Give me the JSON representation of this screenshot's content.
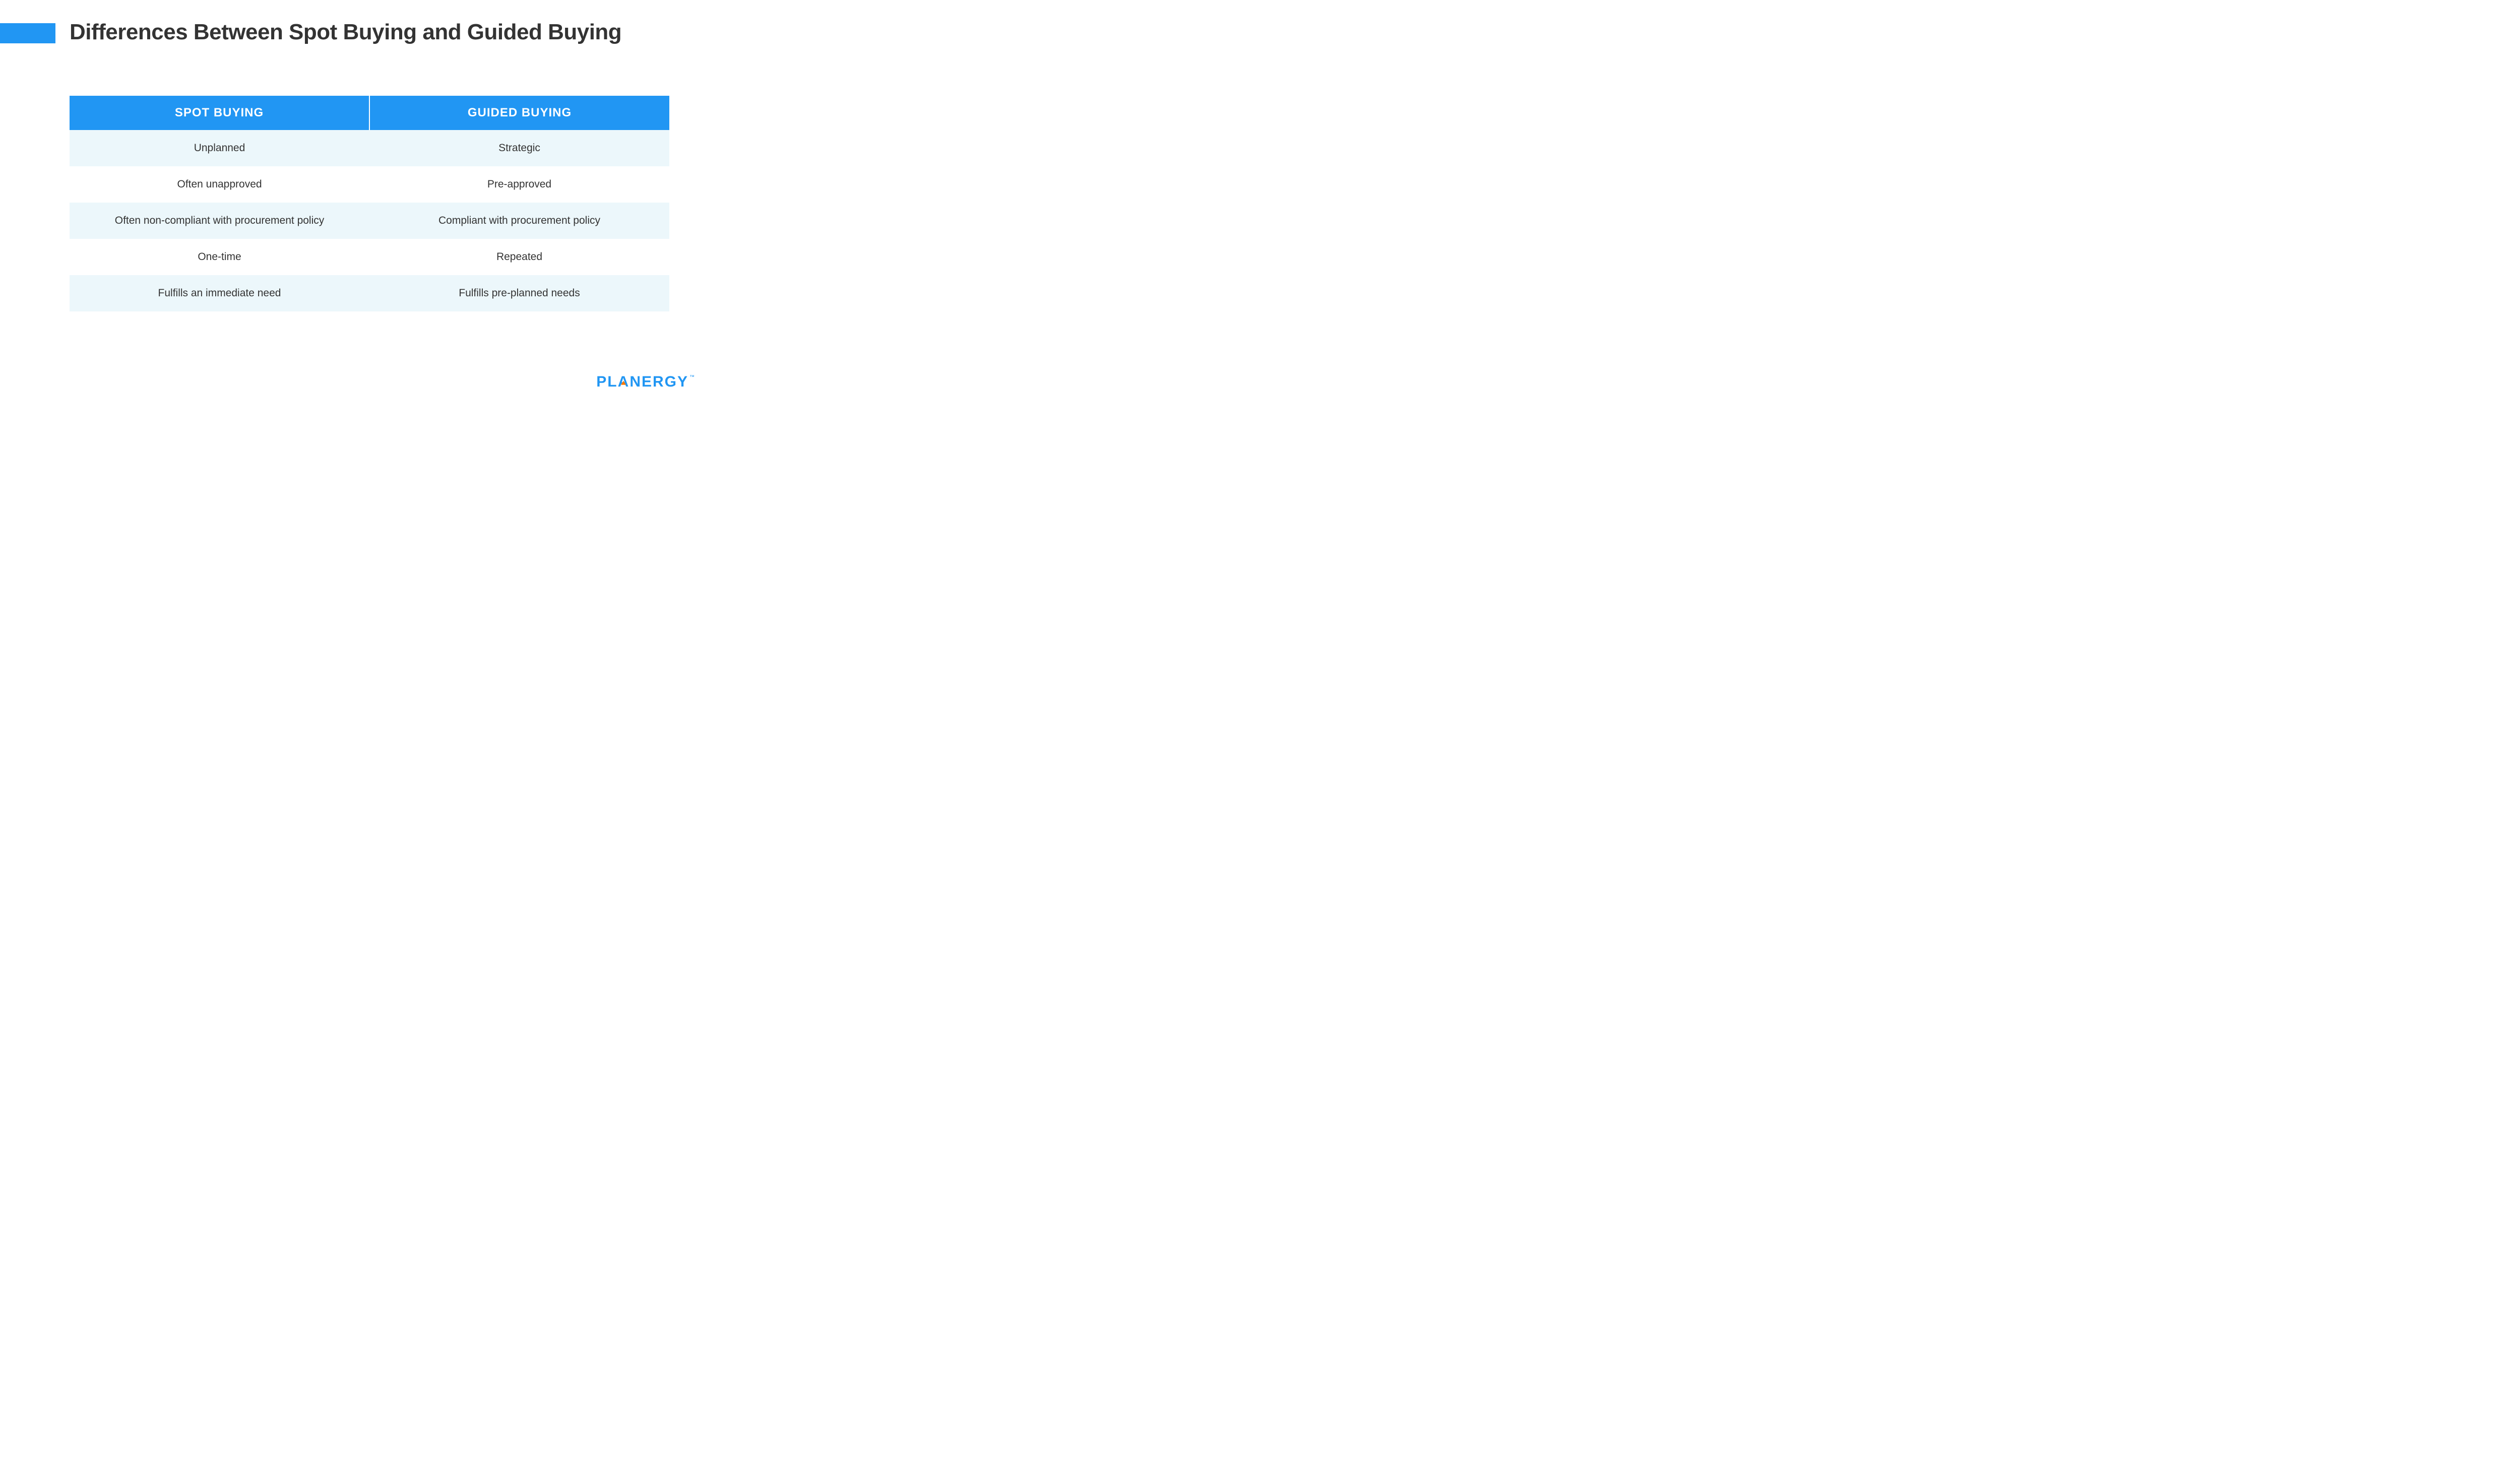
{
  "title": "Differences Between Spot Buying and Guided Buying",
  "accent_color": "#2196f3",
  "header_text_color": "#ffffff",
  "body_text_color": "#333333",
  "row_odd_bg": "#ecf7fb",
  "row_even_bg": "#ffffff",
  "title_fontsize": 44,
  "header_fontsize": 24,
  "cell_fontsize": 21,
  "columns": [
    "SPOT BUYING",
    "GUIDED BUYING"
  ],
  "rows": [
    [
      "Unplanned",
      "Strategic"
    ],
    [
      "Often unapproved",
      "Pre-approved"
    ],
    [
      "Often non-compliant with procurement policy",
      "Compliant with procurement policy"
    ],
    [
      "One-time",
      "Repeated"
    ],
    [
      "Fulfills an immediate need",
      "Fulfills pre-planned needs"
    ]
  ],
  "logo": {
    "text_before": "PL",
    "accent_letter": "A",
    "text_after": "NERGY",
    "tm": "™",
    "color": "#2196f3",
    "accent_triangle_color": "#ff7a00"
  }
}
